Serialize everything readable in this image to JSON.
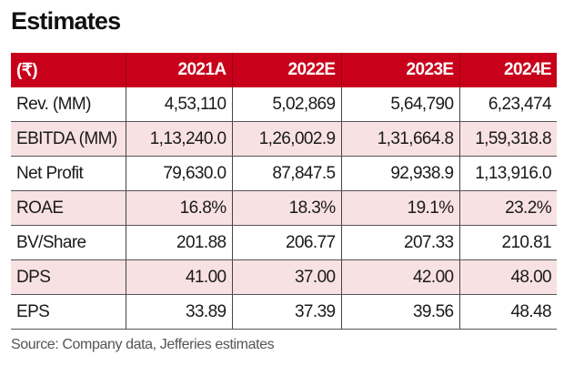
{
  "title": "Estimates",
  "table": {
    "headers": [
      "(₹)",
      "2021A",
      "2022E",
      "2023E",
      "2024E"
    ],
    "rows": [
      [
        "Rev. (MM)",
        "4,53,110",
        "5,02,869",
        "5,64,790",
        "6,23,474"
      ],
      [
        "EBITDA (MM)",
        "1,13,240.0",
        "1,26,002.9",
        "1,31,664.8",
        "1,59,318.8"
      ],
      [
        "Net Profit",
        "79,630.0",
        "87,847.5",
        "92,938.9",
        "1,13,916.0"
      ],
      [
        "ROAE",
        "16.8%",
        "18.3%",
        "19.1%",
        "23.2%"
      ],
      [
        "BV/Share",
        "201.88",
        "206.77",
        "207.33",
        "210.81"
      ],
      [
        "DPS",
        "41.00",
        "37.00",
        "42.00",
        "48.00"
      ],
      [
        "EPS",
        "33.89",
        "37.39",
        "39.56",
        "48.48"
      ]
    ]
  },
  "source": "Source: Company data, Jefferies estimates",
  "colors": {
    "header_bg": "#c8001a",
    "alt_row_bg": "#f8e1e3"
  }
}
